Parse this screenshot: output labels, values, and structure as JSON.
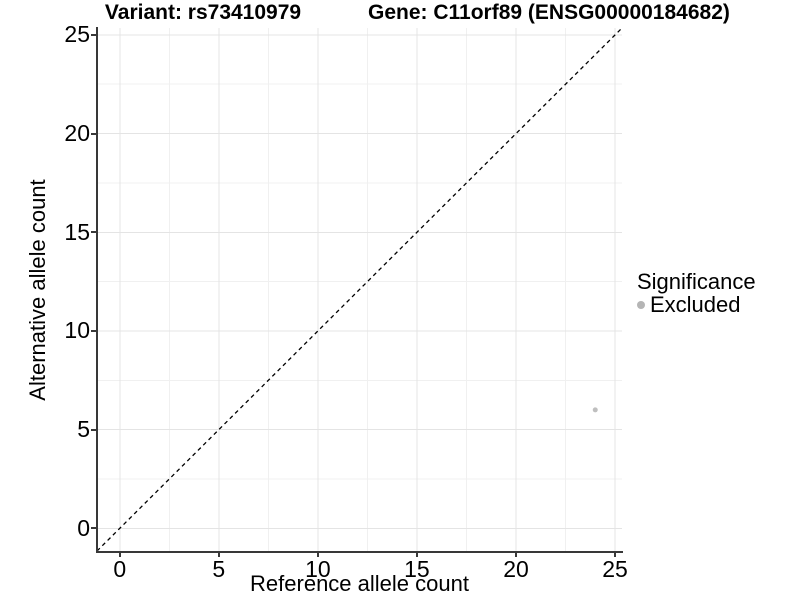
{
  "chart_data": {
    "type": "scatter",
    "title_left": "Variant: rs73410979",
    "title_right": "Gene: C11orf89 (ENSG00000184682)",
    "xlabel": "Reference allele count",
    "ylabel": "Alternative allele count",
    "xlim": [
      -1.15,
      25.35
    ],
    "ylim": [
      -1.2,
      25.35
    ],
    "x_ticks": [
      0,
      5,
      10,
      15,
      20,
      25
    ],
    "y_ticks": [
      0,
      5,
      10,
      15,
      20,
      25
    ],
    "minor_x_ticks": [
      2.5,
      7.5,
      12.5,
      17.5,
      22.5
    ],
    "minor_y_ticks": [
      2.5,
      7.5,
      12.5,
      17.5,
      22.5
    ],
    "grid": true,
    "points": [
      {
        "x": 24,
        "y": 6,
        "series": "Excluded"
      }
    ],
    "reference_line": {
      "type": "identity",
      "style": "dashed",
      "color": "#000000"
    },
    "legend": {
      "title": "Significance",
      "position": "right",
      "entries": [
        {
          "label": "Excluded",
          "color": "#b5b5b5"
        }
      ]
    },
    "colors": {
      "point_excluded": "#bfbfbf",
      "grid_major": "#e4e4e4",
      "grid_minor": "#f0f0f0",
      "axis_line": "#383838",
      "background": "#ffffff"
    }
  }
}
